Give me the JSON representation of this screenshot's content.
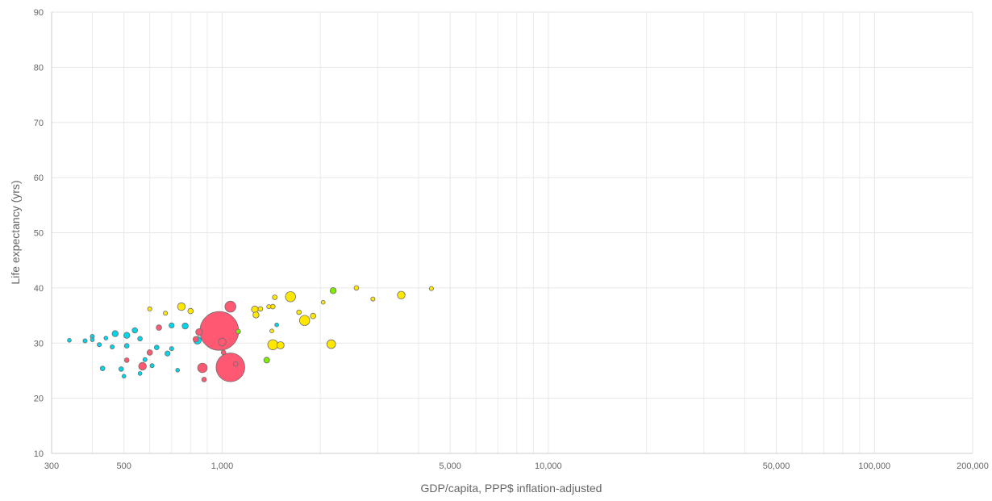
{
  "chart_data": {
    "type": "scatter",
    "title": "",
    "xlabel": "GDP/capita, PPP$ inflation-adjusted",
    "ylabel": "Life expectancy (yrs)",
    "x_scale": "log",
    "xlim": [
      300,
      200000
    ],
    "ylim": [
      10,
      90
    ],
    "grid": true,
    "x_ticks": [
      {
        "value": 300,
        "label": "300"
      },
      {
        "value": 500,
        "label": "500"
      },
      {
        "value": 1000,
        "label": "1,000"
      },
      {
        "value": 5000,
        "label": "5,000"
      },
      {
        "value": 10000,
        "label": "10,000"
      },
      {
        "value": 50000,
        "label": "50,000"
      },
      {
        "value": 100000,
        "label": "100,000"
      },
      {
        "value": 200000,
        "label": "200,000"
      }
    ],
    "x_minor_gridlines": [
      400,
      600,
      700,
      800,
      900,
      2000,
      3000,
      4000,
      6000,
      7000,
      8000,
      9000,
      20000,
      30000,
      40000,
      60000,
      70000,
      80000,
      90000
    ],
    "y_ticks": [
      {
        "value": 10,
        "label": "10"
      },
      {
        "value": 20,
        "label": "20"
      },
      {
        "value": 30,
        "label": "30"
      },
      {
        "value": 40,
        "label": "40"
      },
      {
        "value": 50,
        "label": "50"
      },
      {
        "value": 60,
        "label": "60"
      },
      {
        "value": 70,
        "label": "70"
      },
      {
        "value": 80,
        "label": "80"
      },
      {
        "value": 90,
        "label": "90"
      }
    ],
    "colors": {
      "red": "#ff5872",
      "cyan": "#00d5e9",
      "yellow": "#ffe700",
      "green": "#7feb00"
    },
    "points": [
      {
        "x": 980,
        "y": 32.2,
        "size": 100,
        "color": "red"
      },
      {
        "x": 1060,
        "y": 25.6,
        "size": 55,
        "color": "red"
      },
      {
        "x": 1060,
        "y": 36.6,
        "size": 8,
        "color": "red"
      },
      {
        "x": 870,
        "y": 25.5,
        "size": 6,
        "color": "red"
      },
      {
        "x": 570,
        "y": 25.8,
        "size": 4,
        "color": "red"
      },
      {
        "x": 1000,
        "y": 30.2,
        "size": 4,
        "color": "red"
      },
      {
        "x": 850,
        "y": 32.0,
        "size": 3,
        "color": "red"
      },
      {
        "x": 640,
        "y": 32.8,
        "size": 2,
        "color": "red"
      },
      {
        "x": 600,
        "y": 28.3,
        "size": 2,
        "color": "red"
      },
      {
        "x": 880,
        "y": 23.4,
        "size": 1.5,
        "color": "red"
      },
      {
        "x": 510,
        "y": 26.9,
        "size": 1.5,
        "color": "red"
      },
      {
        "x": 1010,
        "y": 28.3,
        "size": 1.5,
        "color": "red"
      },
      {
        "x": 830,
        "y": 30.7,
        "size": 2,
        "color": "red"
      },
      {
        "x": 1100,
        "y": 26.2,
        "size": 1.5,
        "color": "red"
      },
      {
        "x": 1620,
        "y": 38.4,
        "size": 7,
        "color": "yellow"
      },
      {
        "x": 1790,
        "y": 34.1,
        "size": 7,
        "color": "yellow"
      },
      {
        "x": 1430,
        "y": 29.7,
        "size": 7,
        "color": "yellow"
      },
      {
        "x": 2160,
        "y": 29.8,
        "size": 5,
        "color": "yellow"
      },
      {
        "x": 3540,
        "y": 38.7,
        "size": 4,
        "color": "yellow"
      },
      {
        "x": 750,
        "y": 36.6,
        "size": 4,
        "color": "yellow"
      },
      {
        "x": 1510,
        "y": 29.6,
        "size": 3.5,
        "color": "yellow"
      },
      {
        "x": 1260,
        "y": 36.1,
        "size": 3,
        "color": "yellow"
      },
      {
        "x": 1270,
        "y": 35.1,
        "size": 2.5,
        "color": "yellow"
      },
      {
        "x": 1900,
        "y": 34.9,
        "size": 2,
        "color": "yellow"
      },
      {
        "x": 800,
        "y": 35.8,
        "size": 2,
        "color": "yellow"
      },
      {
        "x": 1310,
        "y": 36.2,
        "size": 1.5,
        "color": "yellow"
      },
      {
        "x": 2580,
        "y": 40.0,
        "size": 1.5,
        "color": "yellow"
      },
      {
        "x": 1450,
        "y": 38.3,
        "size": 1.5,
        "color": "yellow"
      },
      {
        "x": 1430,
        "y": 36.6,
        "size": 1.5,
        "color": "yellow"
      },
      {
        "x": 1720,
        "y": 35.6,
        "size": 1.5,
        "color": "yellow"
      },
      {
        "x": 2900,
        "y": 38.0,
        "size": 1.2,
        "color": "yellow"
      },
      {
        "x": 1390,
        "y": 36.6,
        "size": 1.2,
        "color": "yellow"
      },
      {
        "x": 4380,
        "y": 39.9,
        "size": 1.2,
        "color": "yellow"
      },
      {
        "x": 600,
        "y": 36.2,
        "size": 1.2,
        "color": "yellow"
      },
      {
        "x": 670,
        "y": 35.4,
        "size": 1.2,
        "color": "yellow"
      },
      {
        "x": 2040,
        "y": 37.4,
        "size": 1,
        "color": "yellow"
      },
      {
        "x": 1420,
        "y": 32.2,
        "size": 1,
        "color": "yellow"
      },
      {
        "x": 2190,
        "y": 39.5,
        "size": 2.5,
        "color": "green"
      },
      {
        "x": 1370,
        "y": 26.9,
        "size": 2.2,
        "color": "green"
      },
      {
        "x": 1120,
        "y": 32.1,
        "size": 1.5,
        "color": "green"
      },
      {
        "x": 840,
        "y": 30.5,
        "size": 4,
        "color": "cyan"
      },
      {
        "x": 470,
        "y": 31.7,
        "size": 2.5,
        "color": "cyan"
      },
      {
        "x": 510,
        "y": 31.4,
        "size": 2.5,
        "color": "cyan"
      },
      {
        "x": 770,
        "y": 33.1,
        "size": 2.5,
        "color": "cyan"
      },
      {
        "x": 540,
        "y": 32.3,
        "size": 2,
        "color": "cyan"
      },
      {
        "x": 680,
        "y": 28.1,
        "size": 1.8,
        "color": "cyan"
      },
      {
        "x": 700,
        "y": 33.2,
        "size": 1.8,
        "color": "cyan"
      },
      {
        "x": 430,
        "y": 25.4,
        "size": 1.5,
        "color": "cyan"
      },
      {
        "x": 490,
        "y": 25.3,
        "size": 1.5,
        "color": "cyan"
      },
      {
        "x": 510,
        "y": 29.5,
        "size": 1.5,
        "color": "cyan"
      },
      {
        "x": 560,
        "y": 30.8,
        "size": 1.5,
        "color": "cyan"
      },
      {
        "x": 630,
        "y": 29.2,
        "size": 1.5,
        "color": "cyan"
      },
      {
        "x": 380,
        "y": 30.4,
        "size": 1.2,
        "color": "cyan"
      },
      {
        "x": 400,
        "y": 31.2,
        "size": 1.2,
        "color": "cyan"
      },
      {
        "x": 420,
        "y": 29.7,
        "size": 1.2,
        "color": "cyan"
      },
      {
        "x": 460,
        "y": 29.3,
        "size": 1.2,
        "color": "cyan"
      },
      {
        "x": 700,
        "y": 29.0,
        "size": 1.2,
        "color": "cyan"
      },
      {
        "x": 580,
        "y": 27.0,
        "size": 1.2,
        "color": "cyan"
      },
      {
        "x": 610,
        "y": 25.9,
        "size": 1.2,
        "color": "cyan"
      },
      {
        "x": 560,
        "y": 24.5,
        "size": 1,
        "color": "cyan"
      },
      {
        "x": 340,
        "y": 30.5,
        "size": 1,
        "color": "cyan"
      },
      {
        "x": 400,
        "y": 30.6,
        "size": 1,
        "color": "cyan"
      },
      {
        "x": 440,
        "y": 30.9,
        "size": 1,
        "color": "cyan"
      },
      {
        "x": 730,
        "y": 25.1,
        "size": 1,
        "color": "cyan"
      },
      {
        "x": 500,
        "y": 24.0,
        "size": 1,
        "color": "cyan"
      },
      {
        "x": 1470,
        "y": 33.3,
        "size": 1,
        "color": "cyan"
      }
    ]
  }
}
